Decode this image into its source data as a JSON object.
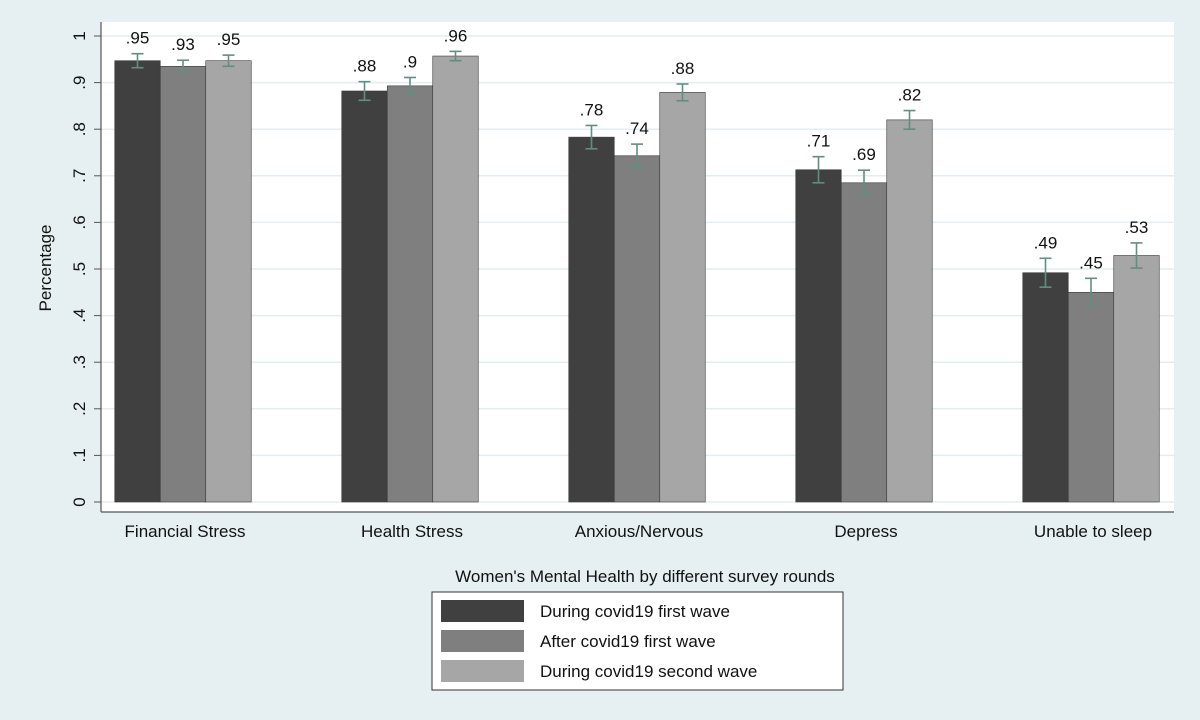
{
  "chart_data": {
    "type": "bar",
    "title": "",
    "xlabel": "Women's Mental Health by different survey rounds",
    "ylabel": "Percentage",
    "ylim": [
      0,
      1
    ],
    "yticks": [
      0,
      0.1,
      0.2,
      0.3,
      0.4,
      0.5,
      0.6,
      0.7,
      0.8,
      0.9,
      1
    ],
    "ytick_labels": [
      "0",
      ".1",
      ".2",
      ".3",
      ".4",
      ".5",
      ".6",
      ".7",
      ".8",
      ".9",
      "1"
    ],
    "grid": true,
    "legend_position": "bottom-center",
    "categories": [
      "Financial Stress",
      "Health Stress",
      "Anxious/Nervous",
      "Depress",
      "Unable to sleep"
    ],
    "series": [
      {
        "name": "During covid19 first wave",
        "color": "#404040",
        "values": [
          0.947,
          0.882,
          0.783,
          0.713,
          0.492
        ],
        "ci": [
          0.015,
          0.02,
          0.025,
          0.028,
          0.031
        ],
        "labels": [
          ".95",
          ".88",
          ".78",
          ".71",
          ".49"
        ]
      },
      {
        "name": "After covid19 first wave",
        "color": "#7f7f7f",
        "values": [
          0.935,
          0.893,
          0.743,
          0.685,
          0.45
        ],
        "ci": [
          0.013,
          0.018,
          0.025,
          0.027,
          0.03
        ],
        "labels": [
          ".93",
          ".9",
          ".74",
          ".69",
          ".45"
        ]
      },
      {
        "name": "During covid19 second wave",
        "color": "#a6a6a6",
        "values": [
          0.947,
          0.957,
          0.879,
          0.82,
          0.529
        ],
        "ci": [
          0.012,
          0.01,
          0.018,
          0.02,
          0.027
        ],
        "labels": [
          ".95",
          ".96",
          ".88",
          ".82",
          ".53"
        ]
      }
    ],
    "errorbar_color": "#5f8f80"
  }
}
